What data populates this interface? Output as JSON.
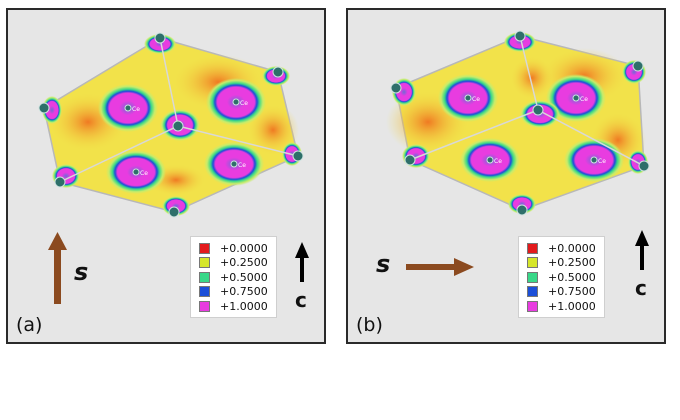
{
  "panels": [
    {
      "id": "a",
      "label": "(a)",
      "spin_label": "s",
      "spin_direction": "up",
      "axis_label": "c",
      "atom_label": "Ce"
    },
    {
      "id": "b",
      "label": "(b)",
      "spin_label": "s",
      "spin_direction": "right",
      "axis_label": "c",
      "atom_label": "Ce"
    }
  ],
  "legend": [
    {
      "label": "+0.0000",
      "color": "#e31a1c"
    },
    {
      "label": "+0.2500",
      "color": "#d6e62a"
    },
    {
      "label": "+0.5000",
      "color": "#38d889"
    },
    {
      "label": "+0.7500",
      "color": "#1b4fd8"
    },
    {
      "label": "+1.0000",
      "color": "#e83ce0"
    }
  ],
  "colors": {
    "background": "#e6e6e6",
    "map_orange": "#f07a22",
    "map_yellow": "#f2e24a",
    "map_green": "#7fe07a",
    "map_magenta": "#e83ce0",
    "spin_arrow": "#8b4a1f",
    "axis_arrow": "#000000",
    "atom": "#2e6f6a"
  }
}
